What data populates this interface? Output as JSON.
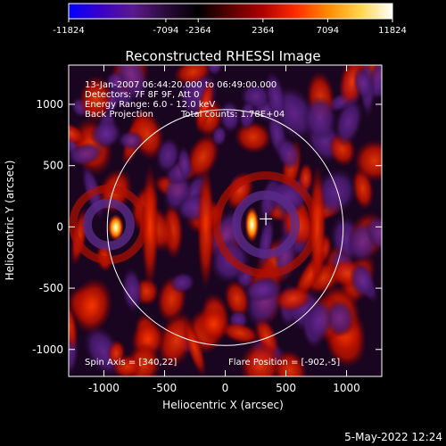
{
  "colorbar": {
    "ticks": [
      "-11824",
      "-7094",
      "-2364",
      "2364",
      "7094",
      "11824"
    ],
    "stops": [
      "#0000ff",
      "#3b00c8",
      "#5a1a8c",
      "#2a0a3a",
      "#000000",
      "#5a0000",
      "#b00000",
      "#ff2a00",
      "#ff8a00",
      "#ffd54a",
      "#ffffff"
    ]
  },
  "plot": {
    "title": "Reconstructed RHESSI Image",
    "info_lines": [
      "13-Jan-2007 06:44:20.000 to 06:49:00.000",
      "Detectors: 7F 8F 9F, Att 0",
      "Energy Range: 6.0 - 12.0 keV"
    ],
    "method": "Back Projection",
    "total_counts": "Total counts: 1.78E+04",
    "spin_axis": "Spin Axis = [340,22]",
    "flare_position": "Flare Position = [-902,-5]",
    "xlabel": "Heliocentric X (arcsec)",
    "ylabel": "Heliocentric Y (arcsec)",
    "x_ticks": [
      "-1000",
      "-500",
      "0",
      "500",
      "1000"
    ],
    "y_ticks": [
      "1000",
      "500",
      "0",
      "-500",
      "-1000"
    ],
    "x_range": [
      -1290,
      1290
    ],
    "y_range": [
      -1220,
      1320
    ],
    "solar_radius_arcsec": 972,
    "marker_position": [
      335,
      65
    ]
  },
  "footer": {
    "timestamp": "5-May-2022 12:24"
  }
}
